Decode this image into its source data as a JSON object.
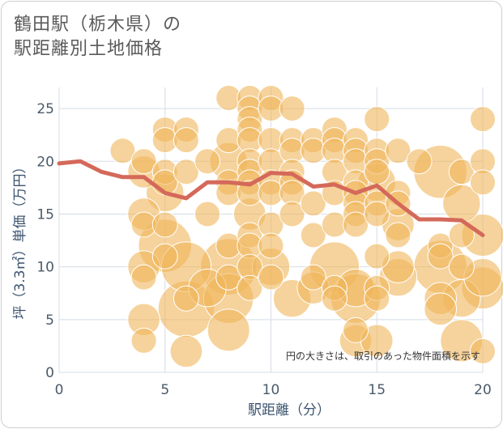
{
  "title_line1": "鶴田駅（栃木県）の",
  "title_line2": "駅距離別土地価格",
  "chart_data": {
    "type": "scatter",
    "title": "鶴田駅（栃木県）の駅距離別土地価格",
    "xlabel": "駅距離（分）",
    "ylabel": "坪（3.3㎡）単価（万円）",
    "xlim": [
      0,
      20
    ],
    "ylim": [
      0,
      27
    ],
    "xticks": [
      0,
      5,
      10,
      15,
      20
    ],
    "yticks": [
      0,
      5,
      10,
      15,
      20,
      25
    ],
    "grid": true,
    "annotation": "円の大きさは、取引のあった物件面積を示す",
    "bubble_color": "#f0b65a",
    "line_color": "#d4695a",
    "average_line": {
      "x": [
        0,
        1,
        2,
        3,
        4,
        5,
        6,
        7,
        8,
        9,
        10,
        11,
        12,
        13,
        14,
        15,
        16,
        17,
        18,
        19,
        20
      ],
      "y": [
        19.8,
        20.0,
        19.0,
        18.5,
        18.5,
        17.0,
        16.5,
        18.0,
        18.0,
        17.8,
        18.9,
        18.8,
        17.6,
        17.8,
        17.0,
        17.7,
        16.0,
        14.5,
        14.5,
        14.4,
        13.0
      ]
    },
    "bubbles": [
      {
        "x": 3,
        "y": 21,
        "s": 1
      },
      {
        "x": 4,
        "y": 20,
        "s": 1
      },
      {
        "x": 4,
        "y": 19,
        "s": 2
      },
      {
        "x": 4,
        "y": 15,
        "s": 2
      },
      {
        "x": 4,
        "y": 14,
        "s": 1
      },
      {
        "x": 4,
        "y": 10,
        "s": 2
      },
      {
        "x": 4,
        "y": 9,
        "s": 1
      },
      {
        "x": 4,
        "y": 5,
        "s": 2
      },
      {
        "x": 4,
        "y": 3,
        "s": 1
      },
      {
        "x": 5,
        "y": 23,
        "s": 1
      },
      {
        "x": 5,
        "y": 22,
        "s": 1
      },
      {
        "x": 5,
        "y": 19,
        "s": 1
      },
      {
        "x": 5,
        "y": 18,
        "s": 1
      },
      {
        "x": 5,
        "y": 17,
        "s": 3
      },
      {
        "x": 5,
        "y": 14,
        "s": 1
      },
      {
        "x": 5,
        "y": 12,
        "s": 7
      },
      {
        "x": 5,
        "y": 11,
        "s": 1
      },
      {
        "x": 6,
        "y": 23,
        "s": 1
      },
      {
        "x": 6,
        "y": 22,
        "s": 1
      },
      {
        "x": 6,
        "y": 19,
        "s": 1
      },
      {
        "x": 6,
        "y": 10,
        "s": 6
      },
      {
        "x": 6,
        "y": 7,
        "s": 1
      },
      {
        "x": 6,
        "y": 6,
        "s": 8
      },
      {
        "x": 6,
        "y": 2,
        "s": 2
      },
      {
        "x": 7,
        "y": 20,
        "s": 1
      },
      {
        "x": 7,
        "y": 15,
        "s": 1
      },
      {
        "x": 7,
        "y": 8,
        "s": 3
      },
      {
        "x": 8,
        "y": 26,
        "s": 1
      },
      {
        "x": 8,
        "y": 22,
        "s": 1
      },
      {
        "x": 8,
        "y": 20,
        "s": 3
      },
      {
        "x": 8,
        "y": 18,
        "s": 1
      },
      {
        "x": 8,
        "y": 17,
        "s": 1
      },
      {
        "x": 8,
        "y": 12,
        "s": 1
      },
      {
        "x": 8,
        "y": 10,
        "s": 8
      },
      {
        "x": 8,
        "y": 9,
        "s": 1
      },
      {
        "x": 8,
        "y": 7,
        "s": 6
      },
      {
        "x": 8,
        "y": 4,
        "s": 4
      },
      {
        "x": 9,
        "y": 26,
        "s": 1
      },
      {
        "x": 9,
        "y": 25,
        "s": 1
      },
      {
        "x": 9,
        "y": 24,
        "s": 1
      },
      {
        "x": 9,
        "y": 23,
        "s": 1
      },
      {
        "x": 9,
        "y": 22,
        "s": 1
      },
      {
        "x": 9,
        "y": 20,
        "s": 1
      },
      {
        "x": 9,
        "y": 19,
        "s": 1
      },
      {
        "x": 9,
        "y": 18,
        "s": 1
      },
      {
        "x": 9,
        "y": 17,
        "s": 1
      },
      {
        "x": 9,
        "y": 15,
        "s": 2
      },
      {
        "x": 9,
        "y": 13,
        "s": 1
      },
      {
        "x": 9,
        "y": 12,
        "s": 1
      },
      {
        "x": 9,
        "y": 10,
        "s": 1
      },
      {
        "x": 9,
        "y": 8,
        "s": 1
      },
      {
        "x": 10,
        "y": 26,
        "s": 1
      },
      {
        "x": 10,
        "y": 25,
        "s": 1
      },
      {
        "x": 10,
        "y": 22,
        "s": 1
      },
      {
        "x": 10,
        "y": 20,
        "s": 1
      },
      {
        "x": 10,
        "y": 18,
        "s": 1
      },
      {
        "x": 10,
        "y": 17,
        "s": 1
      },
      {
        "x": 10,
        "y": 14,
        "s": 1
      },
      {
        "x": 10,
        "y": 12,
        "s": 1
      },
      {
        "x": 10,
        "y": 10,
        "s": 3
      },
      {
        "x": 10,
        "y": 9,
        "s": 1
      },
      {
        "x": 11,
        "y": 25,
        "s": 1
      },
      {
        "x": 11,
        "y": 22,
        "s": 1
      },
      {
        "x": 11,
        "y": 21,
        "s": 1
      },
      {
        "x": 11,
        "y": 19,
        "s": 1
      },
      {
        "x": 11,
        "y": 18,
        "s": 1
      },
      {
        "x": 11,
        "y": 17,
        "s": 1
      },
      {
        "x": 11,
        "y": 15,
        "s": 1
      },
      {
        "x": 11,
        "y": 7,
        "s": 3
      },
      {
        "x": 12,
        "y": 22,
        "s": 1
      },
      {
        "x": 12,
        "y": 21,
        "s": 1
      },
      {
        "x": 12,
        "y": 16,
        "s": 1
      },
      {
        "x": 12,
        "y": 13,
        "s": 1
      },
      {
        "x": 12,
        "y": 9,
        "s": 1
      },
      {
        "x": 12,
        "y": 8,
        "s": 2
      },
      {
        "x": 13,
        "y": 23,
        "s": 1
      },
      {
        "x": 13,
        "y": 22,
        "s": 1
      },
      {
        "x": 13,
        "y": 21,
        "s": 1
      },
      {
        "x": 13,
        "y": 19,
        "s": 1
      },
      {
        "x": 13,
        "y": 17,
        "s": 1
      },
      {
        "x": 13,
        "y": 14,
        "s": 1
      },
      {
        "x": 13,
        "y": 10,
        "s": 6
      },
      {
        "x": 13,
        "y": 8,
        "s": 1
      },
      {
        "x": 13,
        "y": 7,
        "s": 1
      },
      {
        "x": 14,
        "y": 22,
        "s": 1
      },
      {
        "x": 14,
        "y": 21,
        "s": 1
      },
      {
        "x": 14,
        "y": 20,
        "s": 1
      },
      {
        "x": 14,
        "y": 18,
        "s": 1
      },
      {
        "x": 14,
        "y": 17,
        "s": 1
      },
      {
        "x": 14,
        "y": 16,
        "s": 1
      },
      {
        "x": 14,
        "y": 15,
        "s": 1
      },
      {
        "x": 14,
        "y": 14,
        "s": 1
      },
      {
        "x": 14,
        "y": 8,
        "s": 3
      },
      {
        "x": 14,
        "y": 7,
        "s": 6
      },
      {
        "x": 14,
        "y": 4,
        "s": 1
      },
      {
        "x": 14,
        "y": 3,
        "s": 2
      },
      {
        "x": 15,
        "y": 24,
        "s": 1
      },
      {
        "x": 15,
        "y": 21,
        "s": 1
      },
      {
        "x": 15,
        "y": 20,
        "s": 1
      },
      {
        "x": 15,
        "y": 19,
        "s": 1
      },
      {
        "x": 15,
        "y": 18,
        "s": 3
      },
      {
        "x": 15,
        "y": 16,
        "s": 1
      },
      {
        "x": 15,
        "y": 15,
        "s": 1
      },
      {
        "x": 15,
        "y": 11,
        "s": 1
      },
      {
        "x": 15,
        "y": 8,
        "s": 1
      },
      {
        "x": 15,
        "y": 7,
        "s": 1
      },
      {
        "x": 15,
        "y": 3,
        "s": 2
      },
      {
        "x": 16,
        "y": 21,
        "s": 1
      },
      {
        "x": 16,
        "y": 17,
        "s": 1
      },
      {
        "x": 16,
        "y": 16,
        "s": 1
      },
      {
        "x": 16,
        "y": 14,
        "s": 2
      },
      {
        "x": 16,
        "y": 13,
        "s": 1
      },
      {
        "x": 16,
        "y": 10,
        "s": 2
      },
      {
        "x": 16,
        "y": 9,
        "s": 3
      },
      {
        "x": 17,
        "y": 20,
        "s": 1
      },
      {
        "x": 18,
        "y": 19,
        "s": 7
      },
      {
        "x": 18,
        "y": 12,
        "s": 1
      },
      {
        "x": 18,
        "y": 11,
        "s": 1
      },
      {
        "x": 18,
        "y": 10,
        "s": 7
      },
      {
        "x": 18,
        "y": 7,
        "s": 2
      },
      {
        "x": 18,
        "y": 6,
        "s": 2
      },
      {
        "x": 19,
        "y": 19,
        "s": 1
      },
      {
        "x": 19,
        "y": 16,
        "s": 3
      },
      {
        "x": 19,
        "y": 13,
        "s": 1
      },
      {
        "x": 19,
        "y": 10,
        "s": 1
      },
      {
        "x": 19,
        "y": 7,
        "s": 3
      },
      {
        "x": 19,
        "y": 3,
        "s": 4
      },
      {
        "x": 20,
        "y": 24,
        "s": 1
      },
      {
        "x": 20,
        "y": 20,
        "s": 1
      },
      {
        "x": 20,
        "y": 18,
        "s": 1
      },
      {
        "x": 20,
        "y": 13,
        "s": 4
      },
      {
        "x": 20,
        "y": 9,
        "s": 3
      },
      {
        "x": 20,
        "y": 8,
        "s": 4
      },
      {
        "x": 20,
        "y": 2,
        "s": 1
      }
    ]
  }
}
